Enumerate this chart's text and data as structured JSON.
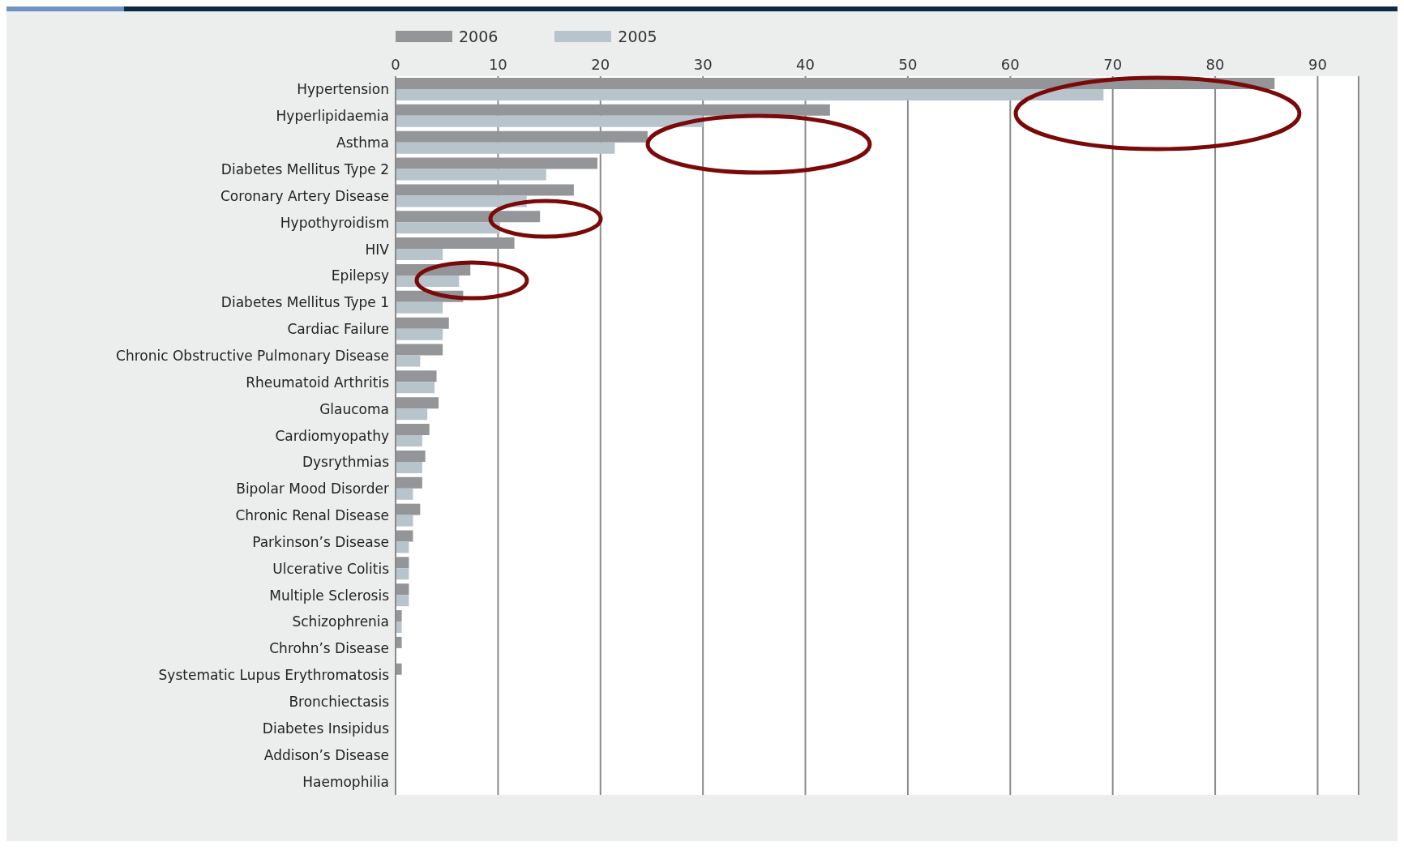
{
  "chart_data": {
    "type": "bar",
    "orientation": "horizontal",
    "categories": [
      "Hypertension",
      "Hyperlipidaemia",
      "Asthma",
      "Diabetes Mellitus Type 2",
      "Coronary Artery Disease",
      "Hypothyroidism",
      "HIV",
      "Epilepsy",
      "Diabetes Mellitus Type 1",
      "Cardiac Failure",
      "Chronic Obstructive Pulmonary Disease",
      "Rheumatoid Arthritis",
      "Glaucoma",
      "Cardiomyopathy",
      "Dysrythmias",
      "Bipolar Mood Disorder",
      "Chronic Renal Disease",
      "Parkinson’s Disease",
      "Ulcerative Colitis",
      "Multiple Sclerosis",
      "Schizophrenia",
      "Chrohn’s Disease",
      "Systematic Lupus Erythromatosis",
      "Bronchiectasis",
      "Diabetes Insipidus",
      "Addison’s Disease",
      "Haemophilia"
    ],
    "series": [
      {
        "name": "2006",
        "color": "#939598",
        "values": [
          85.8,
          42.4,
          24.6,
          19.7,
          17.4,
          14.1,
          11.6,
          7.3,
          6.6,
          5.2,
          4.6,
          4.0,
          4.2,
          3.3,
          2.9,
          2.6,
          2.4,
          1.7,
          1.3,
          1.3,
          0.6,
          0.6,
          0.6,
          0,
          0,
          0,
          0
        ]
      },
      {
        "name": "2005",
        "color": "#b8c4cc",
        "values": [
          69.1,
          30.0,
          21.4,
          14.7,
          12.8,
          10.2,
          4.6,
          6.2,
          4.6,
          4.6,
          2.4,
          3.8,
          3.1,
          2.6,
          2.6,
          1.7,
          1.7,
          1.3,
          1.3,
          1.3,
          0.6,
          0,
          0,
          0,
          0,
          0,
          0
        ]
      }
    ],
    "xlim": [
      0,
      94
    ],
    "xticks": [
      0,
      10,
      20,
      30,
      40,
      50,
      60,
      70,
      80,
      90
    ],
    "grid": "x",
    "legend": "top left"
  }
}
